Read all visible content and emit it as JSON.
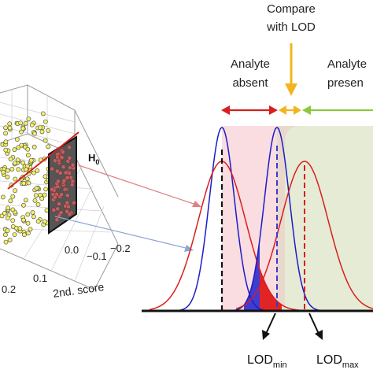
{
  "labels": {
    "compare": [
      "Compare",
      "with LOD"
    ],
    "absent": [
      "Analyte",
      "absent"
    ],
    "present": [
      "Analyte",
      "presen"
    ],
    "h0": "H",
    "h0_sub": "0",
    "score_axis": "2nd. score",
    "ticks_score": [
      "0.0",
      "−0.1",
      "−0.2"
    ],
    "ticks_first": [
      "0.2",
      "0.1"
    ],
    "lod_min": "LOD",
    "lod_min_sub": "min",
    "lod_max": "LOD",
    "lod_max_sub": "max"
  },
  "colors": {
    "blue": "#1c1cc8",
    "red": "#d81e1e",
    "orange": "#f2b51f",
    "green": "#8cc83c",
    "pink_region": "#f9dde0",
    "tan_region": "#ead8cc",
    "green_region": "#e6ebd6",
    "dot_fill": "#f2ef6a",
    "dot_red": "#c06060"
  }
}
